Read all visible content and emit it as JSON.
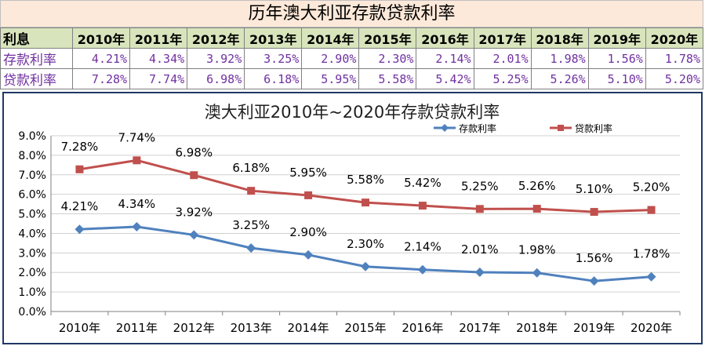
{
  "table": {
    "title": "历年澳大利亚存款贷款利率",
    "header_label": "利息",
    "years": [
      "2010年",
      "2011年",
      "2012年",
      "2013年",
      "2014年",
      "2015年",
      "2016年",
      "2017年",
      "2018年",
      "2019年",
      "2020年"
    ],
    "rows": [
      {
        "label": "存款利率",
        "values": [
          "4.21%",
          "4.34%",
          "3.92%",
          "3.25%",
          "2.90%",
          "2.30%",
          "2.14%",
          "2.01%",
          "1.98%",
          "1.56%",
          "1.78%"
        ]
      },
      {
        "label": "贷款利率",
        "values": [
          "7.28%",
          "7.74%",
          "6.98%",
          "6.18%",
          "5.95%",
          "5.58%",
          "5.42%",
          "5.25%",
          "5.26%",
          "5.10%",
          "5.20%"
        ]
      }
    ]
  },
  "chart_data": {
    "type": "line",
    "title": "澳大利亚2010年~2020年存款贷款利率",
    "categories": [
      "2010年",
      "2011年",
      "2012年",
      "2013年",
      "2014年",
      "2015年",
      "2016年",
      "2017年",
      "2018年",
      "2019年",
      "2020年"
    ],
    "series": [
      {
        "name": "存款利率",
        "color": "#4f81bd",
        "marker": "diamond",
        "values": [
          4.21,
          4.34,
          3.92,
          3.25,
          2.9,
          2.3,
          2.14,
          2.01,
          1.98,
          1.56,
          1.78
        ],
        "labels": [
          "4.21%",
          "4.34%",
          "3.92%",
          "3.25%",
          "2.90%",
          "2.30%",
          "2.14%",
          "2.01%",
          "1.98%",
          "1.56%",
          "1.78%"
        ]
      },
      {
        "name": "贷款利率",
        "color": "#c0504d",
        "marker": "square",
        "values": [
          7.28,
          7.74,
          6.98,
          6.18,
          5.95,
          5.58,
          5.42,
          5.25,
          5.26,
          5.1,
          5.2
        ],
        "labels": [
          "7.28%",
          "7.74%",
          "6.98%",
          "6.18%",
          "5.95%",
          "5.58%",
          "5.42%",
          "5.25%",
          "5.26%",
          "5.10%",
          "5.20%"
        ]
      }
    ],
    "ylim": [
      0,
      9
    ],
    "yticks": [
      "0.0%",
      "1.0%",
      "2.0%",
      "3.0%",
      "4.0%",
      "5.0%",
      "6.0%",
      "7.0%",
      "8.0%",
      "9.0%"
    ],
    "grid": true,
    "legend_position": "top-right"
  }
}
